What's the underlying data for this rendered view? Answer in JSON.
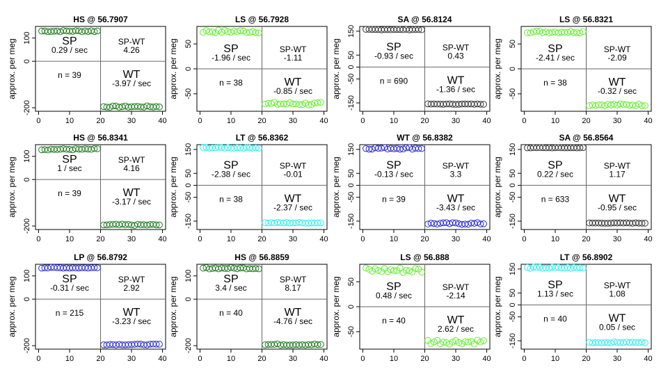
{
  "chart_data": [
    {
      "type": "scatter",
      "title": "HS @ 56.7907",
      "ylabel": "approx. per meg",
      "y_ticks": [
        -200,
        0,
        100
      ],
      "x_ticks": [
        0,
        10,
        20,
        30,
        40
      ],
      "color": "#1f7a1f",
      "sp_label": "SP",
      "sp_rate": "0.29 / sec",
      "spwt_label": "SP-WT",
      "spwt_value": "4.26",
      "n_text": "n = 39",
      "wt_label": "WT",
      "wt_rate": "-3.97 / sec",
      "ylim": [
        -215,
        150
      ],
      "xlim": [
        -1,
        41
      ],
      "sp_level": 130,
      "wt_level": -195,
      "sp_noise": 3,
      "wt_noise": 3
    },
    {
      "type": "scatter",
      "title": "LS @ 56.7928",
      "ylabel": "approx. per meg",
      "y_ticks": [
        -50,
        0,
        50
      ],
      "x_ticks": [
        0,
        10,
        20,
        30,
        40
      ],
      "color": "#66ee33",
      "sp_label": "SP",
      "sp_rate": "-1.96 / sec",
      "spwt_label": "SP-WT",
      "spwt_value": "-1.11",
      "n_text": "n = 38",
      "wt_label": "WT",
      "wt_rate": "-0.85 / sec",
      "ylim": [
        -85,
        85
      ],
      "xlim": [
        -1,
        41
      ],
      "sp_level": 75,
      "wt_level": -70,
      "sp_noise": 3,
      "wt_noise": 3
    },
    {
      "type": "scatter",
      "title": "SA @ 56.8124",
      "ylabel": "approx. per meg",
      "y_ticks": [
        -150,
        -50,
        0,
        50,
        150
      ],
      "x_ticks": [
        0,
        10,
        20,
        30,
        40
      ],
      "color": "#333333",
      "sp_label": "SP",
      "sp_rate": "-0.93 / sec",
      "spwt_label": "SP-WT",
      "spwt_value": "0.43",
      "n_text": "n = 690",
      "wt_label": "WT",
      "wt_rate": "-1.36 / sec",
      "ylim": [
        -185,
        170
      ],
      "xlim": [
        -1,
        41
      ],
      "sp_level": 157,
      "wt_level": -155,
      "sp_noise": 1,
      "wt_noise": 1
    },
    {
      "type": "scatter",
      "title": "LS @ 56.8321",
      "ylabel": "approx. per meg",
      "y_ticks": [
        -50,
        0,
        50
      ],
      "x_ticks": [
        0,
        10,
        20,
        30,
        40
      ],
      "color": "#66ee33",
      "sp_label": "SP",
      "sp_rate": "-2.41 / sec",
      "spwt_label": "SP-WT",
      "spwt_value": "-2.09",
      "n_text": "n = 38",
      "wt_label": "WT",
      "wt_rate": "-0.32 / sec",
      "ylim": [
        -85,
        85
      ],
      "xlim": [
        -1,
        41
      ],
      "sp_level": 74,
      "wt_level": -72,
      "sp_noise": 2,
      "wt_noise": 2
    },
    {
      "type": "scatter",
      "title": "HS @ 56.8341",
      "ylabel": "approx. per meg",
      "y_ticks": [
        -200,
        0,
        100
      ],
      "x_ticks": [
        0,
        10,
        20,
        30,
        40
      ],
      "color": "#1f7a1f",
      "sp_label": "SP",
      "sp_rate": "1 / sec",
      "spwt_label": "SP-WT",
      "spwt_value": "4.16",
      "n_text": "n = 39",
      "wt_label": "WT",
      "wt_rate": "-3.17 / sec",
      "ylim": [
        -215,
        150
      ],
      "xlim": [
        -1,
        41
      ],
      "sp_level": 130,
      "wt_level": -195,
      "sp_noise": 3,
      "wt_noise": 3
    },
    {
      "type": "scatter",
      "title": "LT @ 56.8362",
      "ylabel": "approx. per meg",
      "y_ticks": [
        -150,
        -50,
        0,
        50,
        150
      ],
      "x_ticks": [
        0,
        10,
        20,
        30,
        40
      ],
      "color": "#33eeee",
      "sp_label": "SP",
      "sp_rate": "-2.38 / sec",
      "spwt_label": "SP-WT",
      "spwt_value": "-0.01",
      "n_text": "n = 38",
      "wt_label": "WT",
      "wt_rate": "-2.37 / sec",
      "ylim": [
        -185,
        170
      ],
      "xlim": [
        -1,
        41
      ],
      "sp_level": 157,
      "wt_level": -157,
      "sp_noise": 2,
      "wt_noise": 2
    },
    {
      "type": "scatter",
      "title": "WT @ 56.8382",
      "ylabel": "approx. per meg",
      "y_ticks": [
        -150,
        -50,
        0,
        50,
        150
      ],
      "x_ticks": [
        0,
        10,
        20,
        30,
        40
      ],
      "color": "#2a2acc",
      "sp_label": "SP",
      "sp_rate": "-0.13 / sec",
      "spwt_label": "SP-WT",
      "spwt_value": "3.3",
      "n_text": "n = 39",
      "wt_label": "WT",
      "wt_rate": "-3.43 / sec",
      "ylim": [
        -185,
        170
      ],
      "xlim": [
        -1,
        41
      ],
      "sp_level": 155,
      "wt_level": -160,
      "sp_noise": 4,
      "wt_noise": 4
    },
    {
      "type": "scatter",
      "title": "SA @ 56.8564",
      "ylabel": "approx. per meg",
      "y_ticks": [
        -150,
        -50,
        0,
        50,
        150
      ],
      "x_ticks": [
        0,
        10,
        20,
        30,
        40
      ],
      "color": "#333333",
      "sp_label": "SP",
      "sp_rate": "0.22 / sec",
      "spwt_label": "SP-WT",
      "spwt_value": "1.17",
      "n_text": "n = 633",
      "wt_label": "WT",
      "wt_rate": "-0.95 / sec",
      "ylim": [
        -185,
        170
      ],
      "xlim": [
        -1,
        41
      ],
      "sp_level": 157,
      "wt_level": -158,
      "sp_noise": 1,
      "wt_noise": 1
    },
    {
      "type": "scatter",
      "title": "LP @ 56.8792",
      "ylabel": "approx. per meg",
      "y_ticks": [
        -200,
        0,
        100
      ],
      "x_ticks": [
        0,
        10,
        20,
        30,
        40
      ],
      "color": "#2a2acc",
      "sp_label": "SP",
      "sp_rate": "-0.31 / sec",
      "spwt_label": "SP-WT",
      "spwt_value": "2.92",
      "n_text": "n = 215",
      "wt_label": "WT",
      "wt_rate": "-3.23 / sec",
      "ylim": [
        -215,
        150
      ],
      "xlim": [
        -1,
        41
      ],
      "sp_level": 135,
      "wt_level": -195,
      "sp_noise": 2,
      "wt_noise": 2
    },
    {
      "type": "scatter",
      "title": "HS @ 56.8859",
      "ylabel": "approx. per meg",
      "y_ticks": [
        -200,
        0,
        100
      ],
      "x_ticks": [
        0,
        10,
        20,
        30,
        40
      ],
      "color": "#1f7a1f",
      "sp_label": "SP",
      "sp_rate": "3.4 / sec",
      "spwt_label": "SP-WT",
      "spwt_value": "8.17",
      "n_text": "n = 40",
      "wt_label": "WT",
      "wt_rate": "-4.76 / sec",
      "ylim": [
        -215,
        150
      ],
      "xlim": [
        -1,
        41
      ],
      "sp_level": 133,
      "wt_level": -195,
      "sp_noise": 3,
      "wt_noise": 3
    },
    {
      "type": "scatter",
      "title": "LS @ 56.888",
      "ylabel": "approx. per meg",
      "y_ticks": [
        -50,
        0,
        50
      ],
      "x_ticks": [
        0,
        10,
        20,
        30,
        40
      ],
      "color": "#66ee33",
      "sp_label": "SP",
      "sp_rate": "0.48 / sec",
      "spwt_label": "SP-WT",
      "spwt_value": "-2.14",
      "n_text": "n = 40",
      "wt_label": "WT",
      "wt_rate": "2.62 / sec",
      "ylim": [
        -85,
        85
      ],
      "xlim": [
        -1,
        41
      ],
      "sp_level": 73,
      "wt_level": -70,
      "sp_noise": 6,
      "wt_noise": 5
    },
    {
      "type": "scatter",
      "title": "LT @ 56.8902",
      "ylabel": "approx. per meg",
      "y_ticks": [
        -150,
        -50,
        0,
        50,
        150
      ],
      "x_ticks": [
        0,
        10,
        20,
        30,
        40
      ],
      "color": "#33eeee",
      "sp_label": "SP",
      "sp_rate": "1.13 / sec",
      "spwt_label": "SP-WT",
      "spwt_value": "1.08",
      "n_text": "n = 40",
      "wt_label": "WT",
      "wt_rate": "0.05 / sec",
      "ylim": [
        -185,
        170
      ],
      "xlim": [
        -1,
        41
      ],
      "sp_level": 155,
      "wt_level": -157,
      "sp_noise": 3,
      "wt_noise": 2
    }
  ]
}
